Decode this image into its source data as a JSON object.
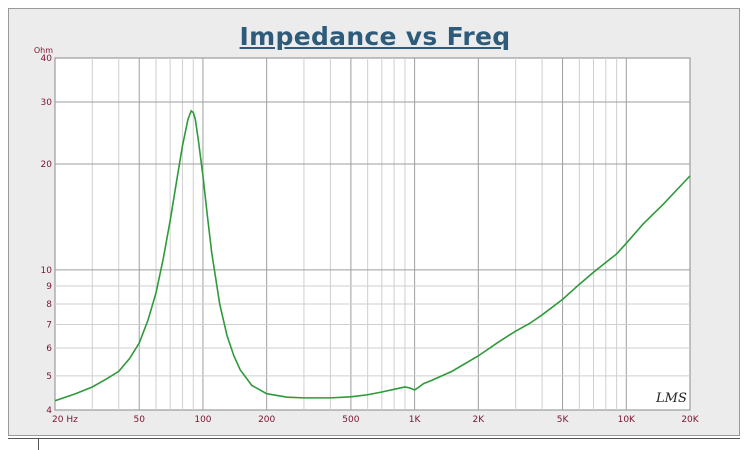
{
  "chart_data": {
    "type": "line",
    "title": "Impedance vs Freq",
    "ylabel": "Ohm",
    "xlabel": "",
    "x_scale": "log",
    "y_scale": "log",
    "xlim": [
      20,
      20000
    ],
    "ylim": [
      4,
      40
    ],
    "grid": true,
    "x_tick_labels": [
      {
        "value": 20,
        "label": "20 Hz"
      },
      {
        "value": 50,
        "label": "50"
      },
      {
        "value": 100,
        "label": "100"
      },
      {
        "value": 200,
        "label": "200"
      },
      {
        "value": 500,
        "label": "500"
      },
      {
        "value": 1000,
        "label": "1K"
      },
      {
        "value": 2000,
        "label": "2K"
      },
      {
        "value": 5000,
        "label": "5K"
      },
      {
        "value": 10000,
        "label": "10K"
      },
      {
        "value": 20000,
        "label": "20K"
      }
    ],
    "y_tick_labels": [
      {
        "value": 40,
        "label": "40"
      },
      {
        "value": 30,
        "label": "30"
      },
      {
        "value": 20,
        "label": "20"
      },
      {
        "value": 10,
        "label": "10"
      },
      {
        "value": 9,
        "label": "9"
      },
      {
        "value": 8,
        "label": "8"
      },
      {
        "value": 7,
        "label": "7"
      },
      {
        "value": 6,
        "label": "6"
      },
      {
        "value": 5,
        "label": "5"
      },
      {
        "value": 4,
        "label": "4"
      }
    ],
    "series": [
      {
        "color": "#2e9a3a",
        "x": [
          20,
          25,
          30,
          35,
          40,
          45,
          50,
          55,
          60,
          65,
          70,
          75,
          80,
          85,
          88,
          90,
          92,
          95,
          100,
          105,
          110,
          120,
          130,
          140,
          150,
          170,
          200,
          250,
          300,
          400,
          500,
          600,
          700,
          800,
          900,
          950,
          1000,
          1050,
          1100,
          1200,
          1500,
          2000,
          2500,
          3000,
          3500,
          4000,
          5000,
          6000,
          7000,
          8000,
          9000,
          10000,
          12000,
          15000,
          20000
        ],
        "y": [
          4.25,
          4.45,
          4.65,
          4.9,
          5.15,
          5.6,
          6.2,
          7.2,
          8.6,
          10.8,
          13.8,
          17.8,
          22.5,
          26.8,
          28.3,
          28.0,
          26.8,
          23.5,
          18.5,
          14.2,
          11.2,
          8.0,
          6.5,
          5.7,
          5.2,
          4.7,
          4.45,
          4.35,
          4.33,
          4.33,
          4.36,
          4.42,
          4.5,
          4.58,
          4.65,
          4.62,
          4.56,
          4.65,
          4.75,
          4.85,
          5.15,
          5.7,
          6.25,
          6.7,
          7.05,
          7.45,
          8.25,
          9.1,
          9.85,
          10.5,
          11.1,
          11.9,
          13.5,
          15.4,
          18.5
        ]
      }
    ]
  },
  "watermark": "LMS"
}
